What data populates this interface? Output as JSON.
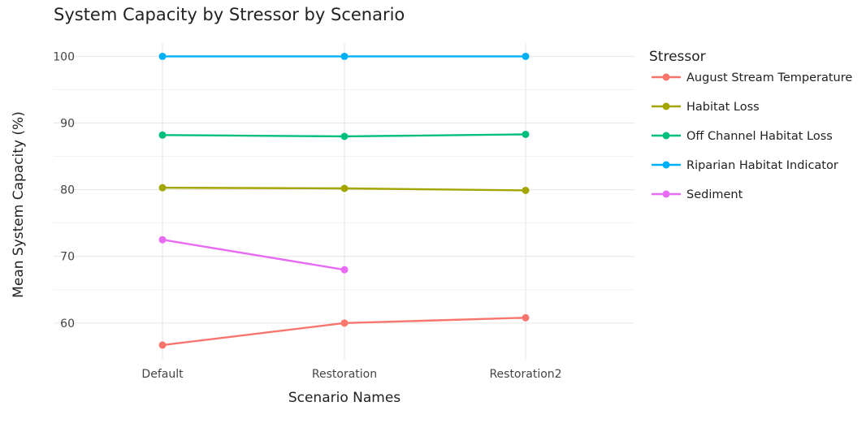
{
  "chart_data": {
    "type": "line",
    "title": "System Capacity by Stressor by Scenario",
    "xlabel": "Scenario Names",
    "ylabel": "Mean System Capacity (%)",
    "categories": [
      "Default",
      "Restoration",
      "Restoration2"
    ],
    "ylim": [
      54.5,
      102
    ],
    "yticks": [
      60,
      70,
      80,
      90,
      100
    ],
    "grid": true,
    "legend": {
      "title": "Stressor",
      "position": "right"
    },
    "series": [
      {
        "name": "August Stream Temperature",
        "color": "#F8766D",
        "values": [
          56.7,
          60.0,
          60.8
        ]
      },
      {
        "name": "Habitat Loss",
        "color": "#A3A500",
        "values": [
          80.3,
          80.2,
          79.9
        ]
      },
      {
        "name": "Off Channel Habitat Loss",
        "color": "#00BF7D",
        "values": [
          88.2,
          88.0,
          88.3
        ]
      },
      {
        "name": "Riparian Habitat Indicator",
        "color": "#00B0F6",
        "values": [
          100,
          100,
          100
        ]
      },
      {
        "name": "Sediment",
        "color": "#E76BF3",
        "values": [
          72.5,
          68.0,
          null
        ]
      }
    ]
  }
}
